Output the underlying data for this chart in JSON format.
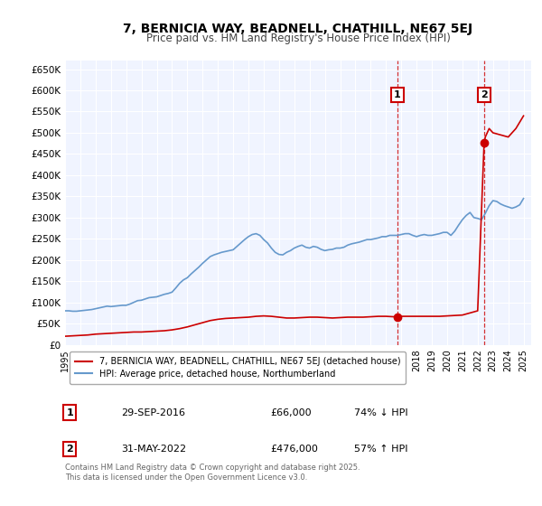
{
  "title": "7, BERNICIA WAY, BEADNELL, CHATHILL, NE67 5EJ",
  "subtitle": "Price paid vs. HM Land Registry's House Price Index (HPI)",
  "xlabel": "",
  "ylabel": "",
  "ylim": [
    0,
    670000
  ],
  "xlim_start": 1995.0,
  "xlim_end": 2025.5,
  "yticks": [
    0,
    50000,
    100000,
    150000,
    200000,
    250000,
    300000,
    350000,
    400000,
    450000,
    500000,
    550000,
    600000,
    650000
  ],
  "ytick_labels": [
    "£0",
    "£50K",
    "£100K",
    "£150K",
    "£200K",
    "£250K",
    "£300K",
    "£350K",
    "£400K",
    "£450K",
    "£500K",
    "£550K",
    "£600K",
    "£650K"
  ],
  "xticks": [
    1995,
    1996,
    1997,
    1998,
    1999,
    2000,
    2001,
    2002,
    2003,
    2004,
    2005,
    2006,
    2007,
    2008,
    2009,
    2010,
    2011,
    2012,
    2013,
    2014,
    2015,
    2016,
    2017,
    2018,
    2019,
    2020,
    2021,
    2022,
    2023,
    2024,
    2025
  ],
  "background_color": "#ffffff",
  "plot_bg_color": "#f0f4ff",
  "grid_color": "#ffffff",
  "hpi_line_color": "#6699cc",
  "price_line_color": "#cc0000",
  "marker1_date": 2016.75,
  "marker1_price": 66000,
  "marker1_label": "1",
  "marker2_date": 2022.42,
  "marker2_price": 476000,
  "marker2_label": "2",
  "vline_color": "#cc0000",
  "annotation_box_color": "#cc0000",
  "legend_label_price": "7, BERNICIA WAY, BEADNELL, CHATHILL, NE67 5EJ (detached house)",
  "legend_label_hpi": "HPI: Average price, detached house, Northumberland",
  "footnote": "Contains HM Land Registry data © Crown copyright and database right 2025.\nThis data is licensed under the Open Government Licence v3.0.",
  "table_row1": [
    "1",
    "29-SEP-2016",
    "£66,000",
    "74% ↓ HPI"
  ],
  "table_row2": [
    "2",
    "31-MAY-2022",
    "£476,000",
    "57% ↑ HPI"
  ],
  "hpi_data": {
    "years": [
      1995.0,
      1995.25,
      1995.5,
      1995.75,
      1996.0,
      1996.25,
      1996.5,
      1996.75,
      1997.0,
      1997.25,
      1997.5,
      1997.75,
      1998.0,
      1998.25,
      1998.5,
      1998.75,
      1999.0,
      1999.25,
      1999.5,
      1999.75,
      2000.0,
      2000.25,
      2000.5,
      2000.75,
      2001.0,
      2001.25,
      2001.5,
      2001.75,
      2002.0,
      2002.25,
      2002.5,
      2002.75,
      2003.0,
      2003.25,
      2003.5,
      2003.75,
      2004.0,
      2004.25,
      2004.5,
      2004.75,
      2005.0,
      2005.25,
      2005.5,
      2005.75,
      2006.0,
      2006.25,
      2006.5,
      2006.75,
      2007.0,
      2007.25,
      2007.5,
      2007.75,
      2008.0,
      2008.25,
      2008.5,
      2008.75,
      2009.0,
      2009.25,
      2009.5,
      2009.75,
      2010.0,
      2010.25,
      2010.5,
      2010.75,
      2011.0,
      2011.25,
      2011.5,
      2011.75,
      2012.0,
      2012.25,
      2012.5,
      2012.75,
      2013.0,
      2013.25,
      2013.5,
      2013.75,
      2014.0,
      2014.25,
      2014.5,
      2014.75,
      2015.0,
      2015.25,
      2015.5,
      2015.75,
      2016.0,
      2016.25,
      2016.5,
      2016.75,
      2017.0,
      2017.25,
      2017.5,
      2017.75,
      2018.0,
      2018.25,
      2018.5,
      2018.75,
      2019.0,
      2019.25,
      2019.5,
      2019.75,
      2020.0,
      2020.25,
      2020.5,
      2020.75,
      2021.0,
      2021.25,
      2021.5,
      2021.75,
      2022.0,
      2022.25,
      2022.5,
      2022.75,
      2023.0,
      2023.25,
      2023.5,
      2023.75,
      2024.0,
      2024.25,
      2024.5,
      2024.75,
      2025.0
    ],
    "values": [
      80000,
      80000,
      79000,
      79000,
      80000,
      81000,
      82000,
      83000,
      85000,
      87000,
      89000,
      91000,
      90000,
      91000,
      92000,
      93000,
      93000,
      96000,
      100000,
      104000,
      105000,
      108000,
      111000,
      112000,
      113000,
      116000,
      119000,
      121000,
      124000,
      134000,
      145000,
      153000,
      158000,
      167000,
      175000,
      183000,
      192000,
      200000,
      208000,
      212000,
      215000,
      218000,
      220000,
      222000,
      224000,
      232000,
      240000,
      248000,
      255000,
      260000,
      262000,
      258000,
      248000,
      240000,
      228000,
      218000,
      213000,
      212000,
      218000,
      222000,
      228000,
      232000,
      235000,
      230000,
      228000,
      232000,
      230000,
      225000,
      222000,
      224000,
      225000,
      228000,
      228000,
      230000,
      235000,
      238000,
      240000,
      242000,
      245000,
      248000,
      248000,
      250000,
      252000,
      255000,
      255000,
      258000,
      258000,
      258000,
      260000,
      262000,
      262000,
      258000,
      255000,
      258000,
      260000,
      258000,
      258000,
      260000,
      262000,
      265000,
      265000,
      258000,
      268000,
      282000,
      295000,
      305000,
      312000,
      300000,
      298000,
      295000,
      310000,
      328000,
      340000,
      338000,
      332000,
      328000,
      325000,
      322000,
      325000,
      330000,
      345000
    ]
  },
  "price_data": {
    "years": [
      1995.0,
      1995.5,
      1996.0,
      1996.5,
      1997.0,
      1997.5,
      1998.0,
      1998.5,
      1999.0,
      1999.5,
      2000.0,
      2000.5,
      2001.0,
      2001.5,
      2002.0,
      2002.5,
      2003.0,
      2003.5,
      2004.0,
      2004.5,
      2005.0,
      2005.5,
      2006.0,
      2006.5,
      2007.0,
      2007.5,
      2008.0,
      2008.5,
      2009.0,
      2009.5,
      2010.0,
      2010.5,
      2011.0,
      2011.5,
      2012.0,
      2012.5,
      2013.0,
      2013.5,
      2014.0,
      2014.5,
      2015.0,
      2015.5,
      2016.0,
      2016.5,
      2016.75,
      2017.0,
      2017.5,
      2018.0,
      2018.5,
      2019.0,
      2019.5,
      2020.0,
      2020.5,
      2021.0,
      2021.5,
      2022.0,
      2022.42,
      2022.5,
      2022.75,
      2023.0,
      2023.5,
      2024.0,
      2024.5,
      2025.0
    ],
    "values": [
      20000,
      21000,
      22000,
      23000,
      25000,
      26000,
      27000,
      28000,
      29000,
      30000,
      30000,
      31000,
      32000,
      33000,
      35000,
      38000,
      42000,
      47000,
      52000,
      57000,
      60000,
      62000,
      63000,
      64000,
      65000,
      67000,
      68000,
      67000,
      65000,
      63000,
      63000,
      64000,
      65000,
      65000,
      64000,
      63000,
      64000,
      65000,
      65000,
      65000,
      66000,
      67000,
      67000,
      66000,
      66000,
      67000,
      67000,
      67000,
      67000,
      67000,
      67000,
      68000,
      69000,
      70000,
      75000,
      80000,
      476000,
      490000,
      510000,
      500000,
      495000,
      490000,
      510000,
      540000
    ]
  }
}
